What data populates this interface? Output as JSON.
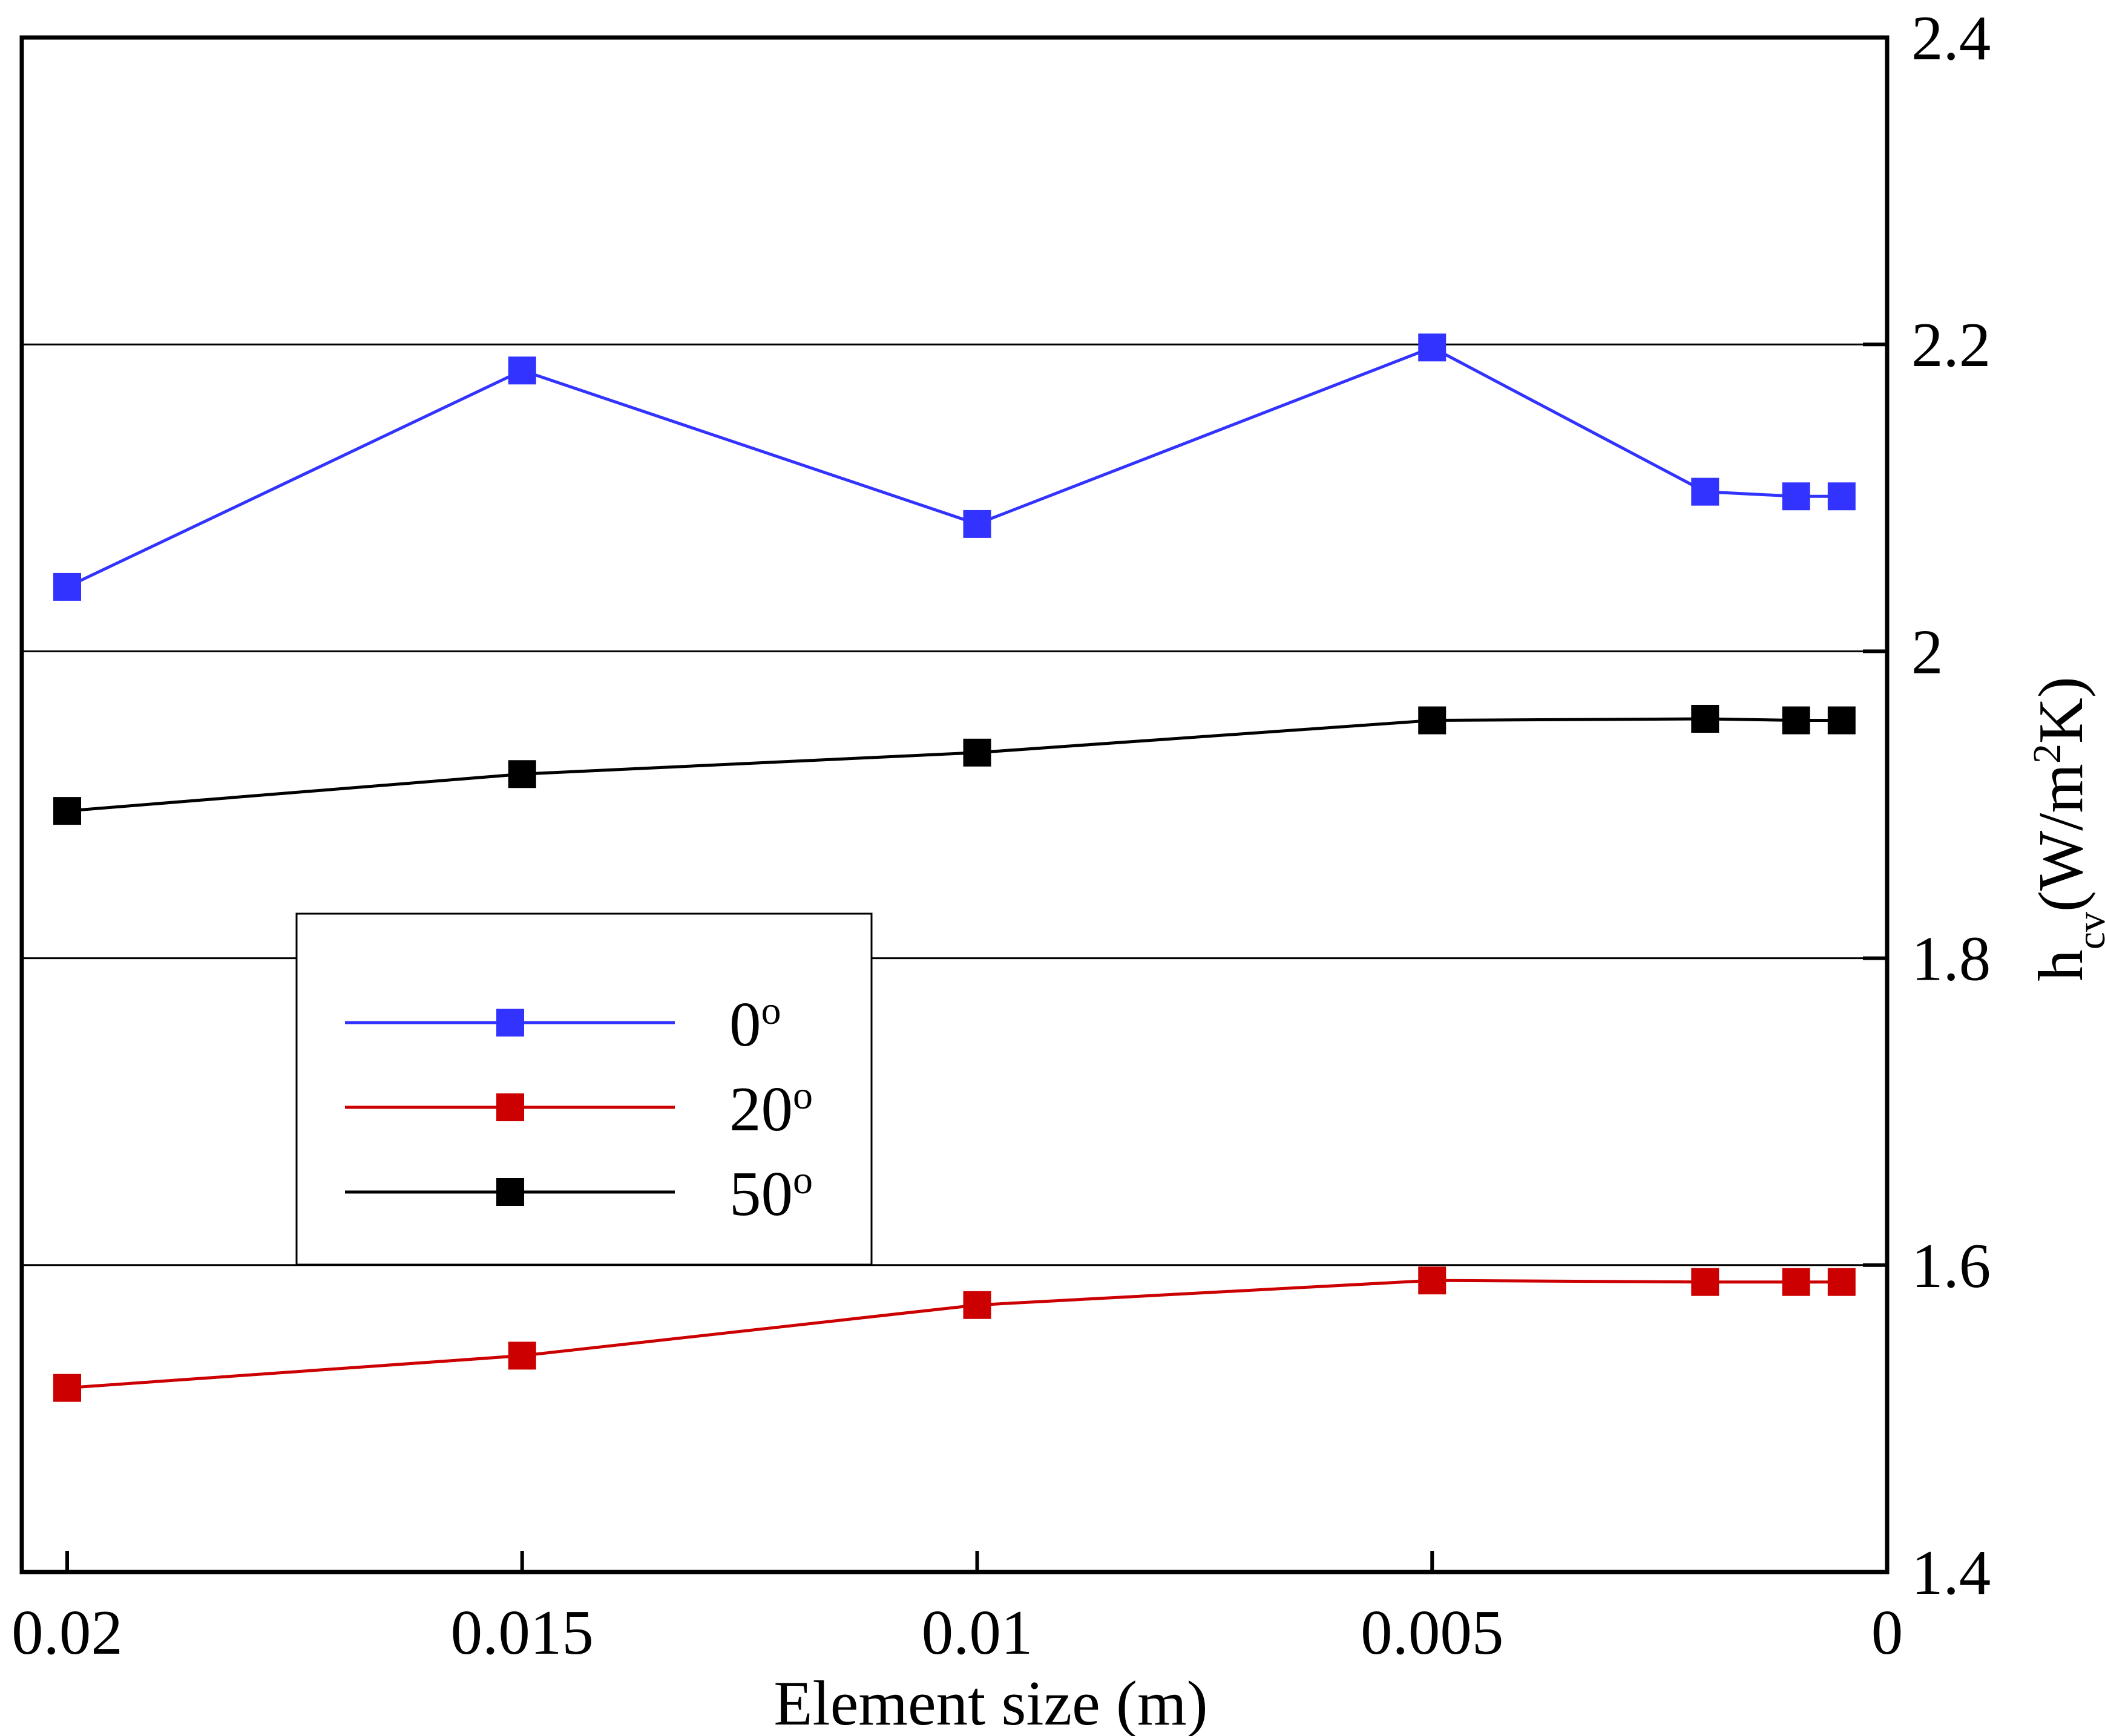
{
  "chart_data": {
    "type": "line",
    "title": "",
    "xlabel": "Element size (m)",
    "ylabel": {
      "base": "h",
      "sub": "cv",
      "unit_open": "(W/m",
      "sup": "2",
      "unit_close": "K)"
    },
    "x_reversed": true,
    "xlim": [
      0.02,
      0
    ],
    "ylim": [
      1.4,
      2.4
    ],
    "y_axis_side": "right",
    "x_ticks": [
      {
        "value": 0.02,
        "label": "0.02"
      },
      {
        "value": 0.015,
        "label": "0.015"
      },
      {
        "value": 0.01,
        "label": "0.01"
      },
      {
        "value": 0.005,
        "label": "0.005"
      },
      {
        "value": 0,
        "label": "0"
      }
    ],
    "y_ticks": [
      {
        "value": 1.4,
        "label": "1.4"
      },
      {
        "value": 1.6,
        "label": "1.6"
      },
      {
        "value": 1.8,
        "label": "1.8"
      },
      {
        "value": 2.0,
        "label": "2"
      },
      {
        "value": 2.2,
        "label": "2.2"
      },
      {
        "value": 2.4,
        "label": "2.4"
      }
    ],
    "grid": {
      "horizontal": true,
      "vertical": false
    },
    "legend": {
      "position": "center-left"
    },
    "x": [
      0.02,
      0.015,
      0.01,
      0.005,
      0.002,
      0.001,
      0.0005
    ],
    "series": [
      {
        "name": "0",
        "degree": "o",
        "color": "#3333ff",
        "marker": "square",
        "values": [
          2.042,
          2.183,
          2.083,
          2.198,
          2.104,
          2.101,
          2.101
        ]
      },
      {
        "name": "20",
        "degree": "o",
        "color": "#cc0000",
        "marker": "square",
        "values": [
          1.52,
          1.541,
          1.574,
          1.59,
          1.589,
          1.589,
          1.589
        ]
      },
      {
        "name": "50",
        "degree": "o",
        "color": "#000000",
        "marker": "square",
        "values": [
          1.896,
          1.92,
          1.934,
          1.955,
          1.956,
          1.955,
          1.955
        ]
      }
    ]
  }
}
